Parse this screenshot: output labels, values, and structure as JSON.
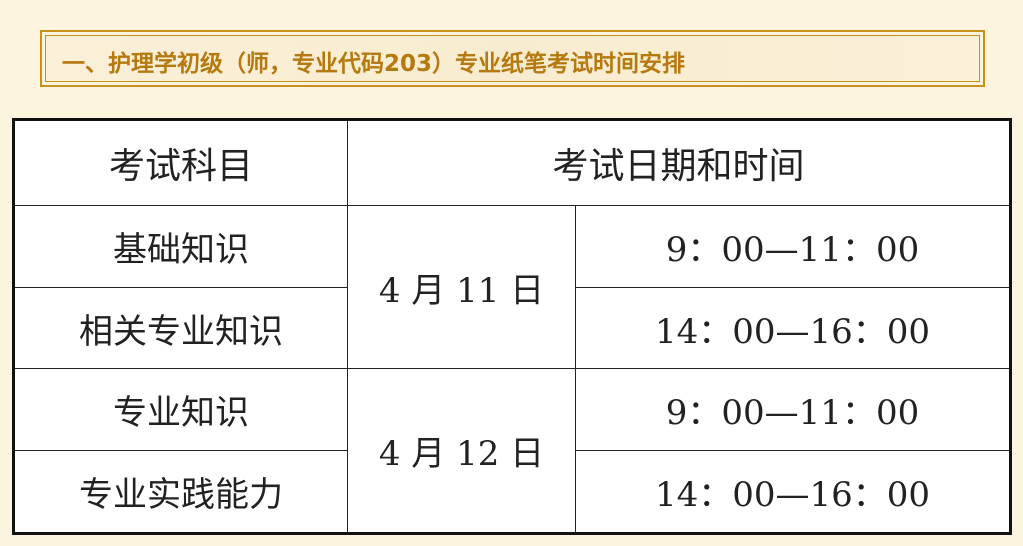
{
  "title": "一、护理学初级（师，专业代码203）专业纸笔考试时间安排",
  "colors": {
    "accent": "#c8911c",
    "title_text": "#b5790f",
    "background": "#fcf4df"
  },
  "table": {
    "headers": [
      "考试科目",
      "考试日期和时间"
    ],
    "rows": [
      {
        "subject": "基础知识",
        "date": "4 月 11 日",
        "time": "9：00—11：00"
      },
      {
        "subject": "相关专业知识",
        "time": "14：00—16：00"
      },
      {
        "subject": "专业知识",
        "date": "4 月 12 日",
        "time": "9：00—11：00"
      },
      {
        "subject": "专业实践能力",
        "time": "14：00—16：00"
      }
    ]
  }
}
